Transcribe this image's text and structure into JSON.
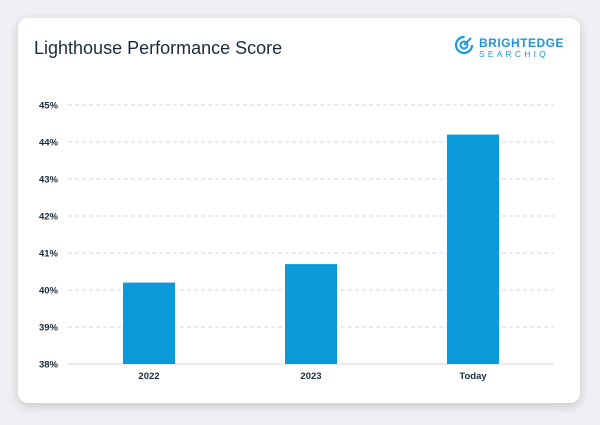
{
  "title": "Lighthouse Performance Score",
  "logo": {
    "main": "BRIGHTEDGE",
    "sub": "SEARCHIQ",
    "icon": "brightedge-logo-icon"
  },
  "colors": {
    "bar": "#0b9ad9",
    "grid": "#d6d6d6",
    "text": "#1c2b3a",
    "brand": "#1a97d8"
  },
  "chart_data": {
    "type": "bar",
    "title": "Lighthouse Performance Score",
    "categories": [
      "2022",
      "2023",
      "Today"
    ],
    "values": [
      40.2,
      40.7,
      44.2
    ],
    "ylim": [
      38,
      45
    ],
    "yticks": [
      "38%",
      "39%",
      "40%",
      "41%",
      "42%",
      "43%",
      "44%",
      "45%"
    ],
    "xlabel": "",
    "ylabel": "",
    "grid": true,
    "legend": "none"
  }
}
